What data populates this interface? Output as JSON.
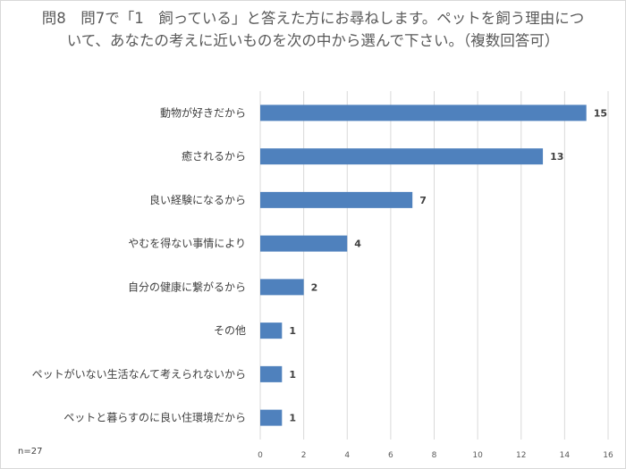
{
  "chart_data": {
    "type": "bar",
    "orientation": "horizontal",
    "title": "問8　問7で「1　飼っている」と答えた方にお尋ねします。ペットを飼う理由について、あなたの考えに近いものを次の中から選んで下さい。（複数回答可）",
    "categories": [
      "動物が好きだから",
      "癒されるから",
      "良い経験になるから",
      "やむを得ない事情により",
      "自分の健康に繋がるから",
      "その他",
      "ペットがいない生活なんて考えられないから",
      "ペットと暮らすのに良い住環境だから"
    ],
    "values": [
      15,
      13,
      7,
      4,
      2,
      1,
      1,
      1
    ],
    "xlim": [
      0,
      16
    ],
    "xticks": [
      0,
      2,
      4,
      6,
      8,
      10,
      12,
      14,
      16
    ],
    "grid": true,
    "legend": "none",
    "bar_color": "#4f81bd",
    "note": "n=27"
  }
}
